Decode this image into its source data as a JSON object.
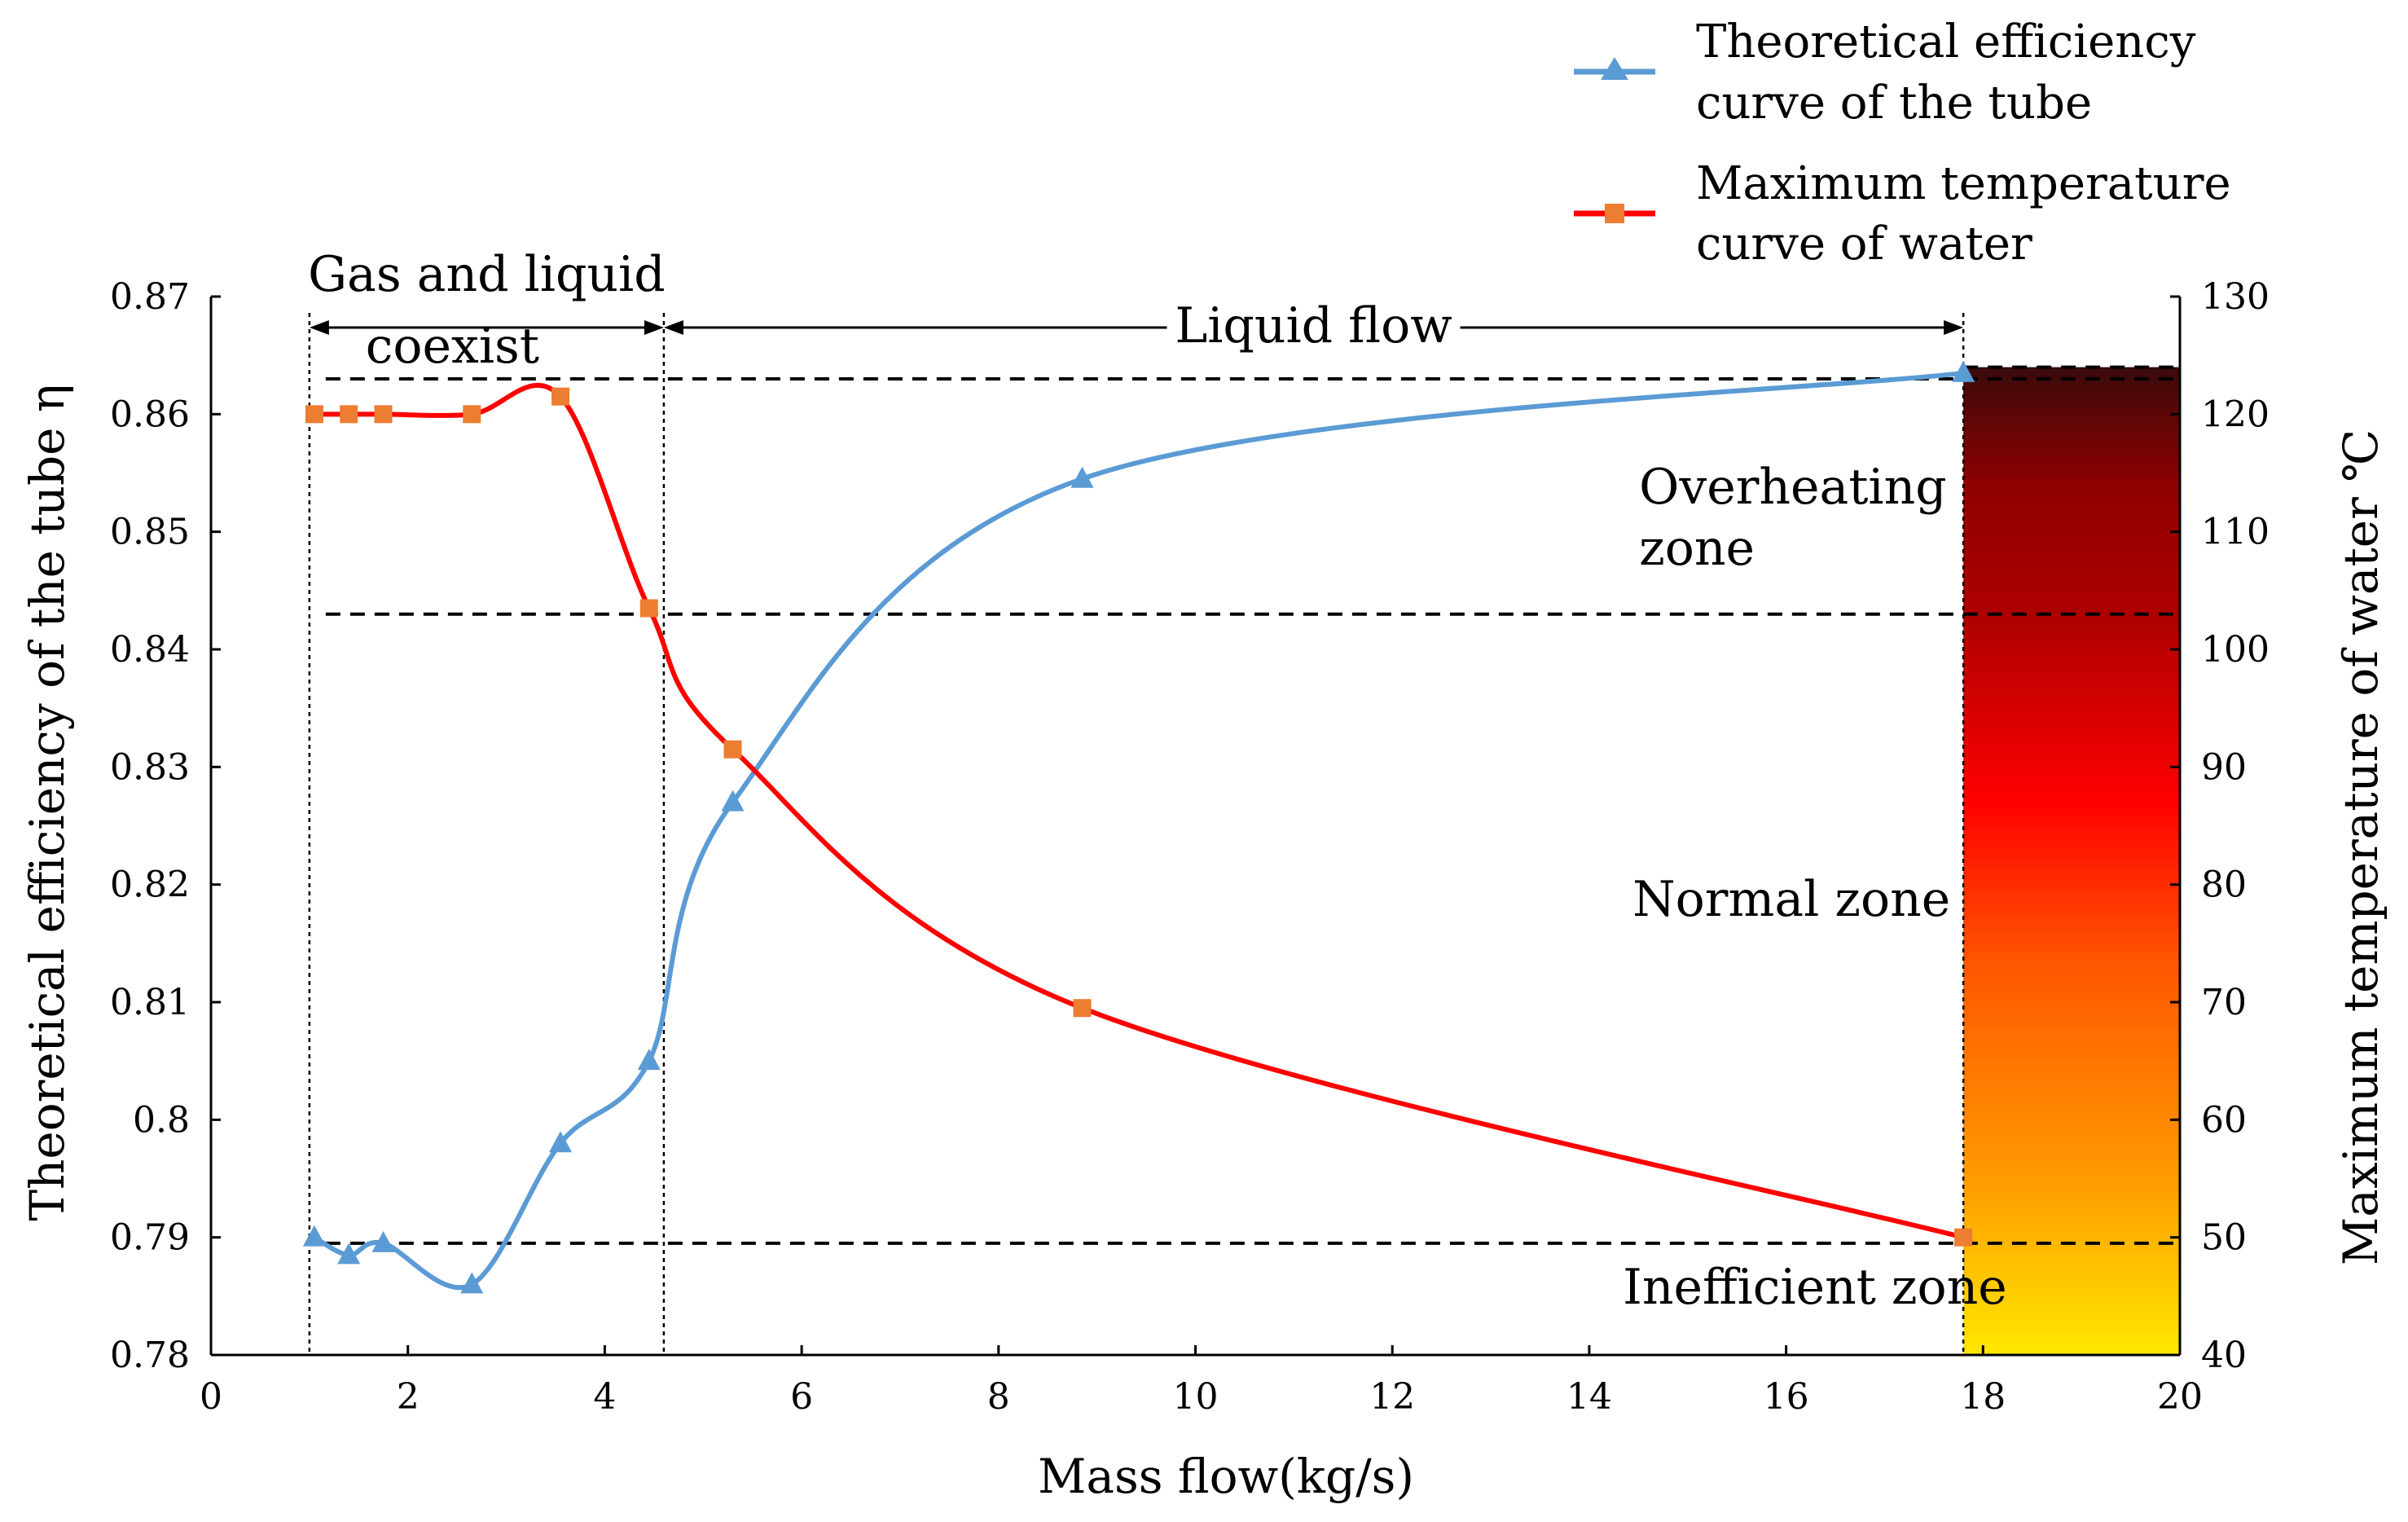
{
  "chart_data": {
    "type": "line",
    "xlabel": "Mass flow(kg/s)",
    "ylabel_left": "Theoretical efficiency of the tube η",
    "ylabel_right": "Maximum temperature of water ℃",
    "xlim": [
      0,
      20
    ],
    "ylim_left": [
      0.78,
      0.87
    ],
    "ylim_right": [
      40,
      130
    ],
    "x_ticks": [
      "0",
      "2",
      "4",
      "6",
      "8",
      "10",
      "12",
      "14",
      "16",
      "18",
      "20"
    ],
    "y_left_ticks": [
      "0.78",
      "0.79",
      "0.8",
      "0.81",
      "0.82",
      "0.83",
      "0.84",
      "0.85",
      "0.86",
      "0.87"
    ],
    "y_right_ticks": [
      "40",
      "50",
      "60",
      "70",
      "80",
      "90",
      "100",
      "110",
      "120",
      "130"
    ],
    "series": [
      {
        "name": "Theoretical efficiency curve of the tube",
        "axis": "left",
        "marker": "triangle",
        "color": "#5B9BD5",
        "x": [
          1.05,
          1.4,
          1.75,
          2.65,
          3.55,
          4.45,
          5.3,
          8.85,
          17.8
        ],
        "values": [
          0.79,
          0.7885,
          0.7895,
          0.786,
          0.798,
          0.805,
          0.827,
          0.8545,
          0.8635
        ]
      },
      {
        "name": "Maximum temperature curve of water",
        "axis": "right",
        "marker": "square",
        "color": "#FF0000",
        "marker_color": "#ED7D31",
        "x": [
          1.05,
          1.4,
          1.75,
          2.65,
          3.55,
          4.45,
          5.3,
          8.85,
          17.8
        ],
        "values": [
          120,
          120,
          120,
          120,
          121.5,
          103.5,
          91.5,
          69.5,
          50
        ]
      }
    ],
    "legend": [
      {
        "line1": "Theoretical efficiency",
        "line2": "curve of the tube"
      },
      {
        "line1": "Maximum temperature",
        "line2": "curve of water"
      }
    ],
    "reference_lines": {
      "vertical_x": [
        1.0,
        4.6,
        17.8
      ],
      "horizontal_right_temp": [
        123,
        103,
        49.5,
        124
      ]
    },
    "regions": {
      "gas_liquid": {
        "line1": "Gas and liquid",
        "line2": "coexist",
        "x_from": 1.0,
        "x_to": 4.6
      },
      "liquid": {
        "label": "Liquid flow",
        "x_from": 4.6,
        "x_to": 17.8
      }
    },
    "zones": {
      "overheating": {
        "line1": "Overheating",
        "line2": "zone",
        "temp": 113
      },
      "normal": {
        "label": "Normal zone",
        "temp": 78
      },
      "inefficient": {
        "label": "Inefficient zone",
        "temp": 45
      }
    },
    "colorbar": {
      "x_from": 17.8,
      "x_to": 20,
      "temp_from": 40,
      "temp_to": 124,
      "colors": [
        "#FFE800",
        "#FF9A00",
        "#FF5500",
        "#FF0000",
        "#B00000",
        "#8E0000",
        "#3A0A0A"
      ]
    }
  }
}
